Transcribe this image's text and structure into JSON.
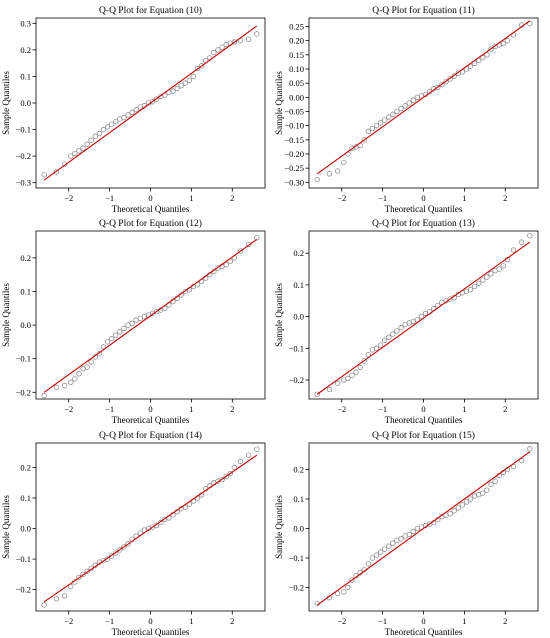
{
  "figure": {
    "background": "#ffffff",
    "marker_color": "#7f7f7f",
    "line_color": "#cc0000"
  },
  "chart_data": [
    {
      "type": "scatter",
      "title": "Q-Q Plot for Equation (10)",
      "xlabel": "Theoretical Quantiles",
      "ylabel": "Sample Quantiles",
      "xlim": [
        -2.8,
        2.8
      ],
      "ylim": [
        -0.32,
        0.32
      ],
      "xticks": [
        -2,
        -1,
        0,
        1,
        2
      ],
      "yticks": [
        -0.3,
        -0.2,
        -0.1,
        0.0,
        0.1,
        0.2,
        0.3
      ],
      "yticklabels": [
        "−0.3",
        "−0.2",
        "−0.1",
        "0.0",
        "0.1",
        "0.2",
        "0.3"
      ],
      "reference_line": {
        "x": [
          -2.6,
          2.6
        ],
        "y": [
          -0.29,
          0.29
        ]
      },
      "series": [
        {
          "x": [
            -2.6,
            -2.3,
            -2.1,
            -1.95,
            -1.85,
            -1.75,
            -1.65,
            -1.55,
            -1.45,
            -1.35,
            -1.25,
            -1.15,
            -1.05,
            -0.95,
            -0.85,
            -0.75,
            -0.65,
            -0.55,
            -0.45,
            -0.35,
            -0.25,
            -0.15,
            -0.05,
            0.05,
            0.15,
            0.25,
            0.35,
            0.45,
            0.55,
            0.65,
            0.75,
            0.85,
            0.95,
            1.05,
            1.15,
            1.25,
            1.35,
            1.45,
            1.55,
            1.65,
            1.75,
            1.85,
            1.95,
            2.05,
            2.2,
            2.4,
            2.6
          ],
          "y": [
            -0.27,
            -0.26,
            -0.23,
            -0.2,
            -0.19,
            -0.18,
            -0.17,
            -0.155,
            -0.14,
            -0.125,
            -0.115,
            -0.1,
            -0.09,
            -0.08,
            -0.07,
            -0.06,
            -0.055,
            -0.045,
            -0.035,
            -0.025,
            -0.015,
            -0.01,
            0.0,
            0.005,
            0.015,
            0.025,
            0.03,
            0.04,
            0.045,
            0.055,
            0.065,
            0.075,
            0.085,
            0.1,
            0.13,
            0.14,
            0.16,
            0.17,
            0.19,
            0.2,
            0.21,
            0.22,
            0.225,
            0.23,
            0.235,
            0.24,
            0.26
          ]
        }
      ]
    },
    {
      "type": "scatter",
      "title": "Q-Q Plot for Equation (11)",
      "xlabel": "Theoretical Quantiles",
      "ylabel": "Sample Quantiles",
      "xlim": [
        -2.8,
        2.8
      ],
      "ylim": [
        -0.32,
        0.28
      ],
      "xticks": [
        -2,
        -1,
        0,
        1,
        2
      ],
      "yticks": [
        -0.3,
        -0.25,
        -0.2,
        -0.15,
        -0.1,
        -0.05,
        0.0,
        0.05,
        0.1,
        0.15,
        0.2,
        0.25
      ],
      "yticklabels": [
        "−0.30",
        "−0.25",
        "−0.20",
        "−0.15",
        "−0.10",
        "−0.05",
        "0.00",
        "0.05",
        "0.10",
        "0.15",
        "0.20",
        "0.25"
      ],
      "reference_line": {
        "x": [
          -2.6,
          2.6
        ],
        "y": [
          -0.27,
          0.27
        ]
      },
      "series": [
        {
          "x": [
            -2.6,
            -2.3,
            -2.1,
            -1.95,
            -1.85,
            -1.75,
            -1.65,
            -1.55,
            -1.45,
            -1.35,
            -1.25,
            -1.15,
            -1.05,
            -0.95,
            -0.85,
            -0.75,
            -0.65,
            -0.55,
            -0.45,
            -0.35,
            -0.25,
            -0.15,
            -0.05,
            0.05,
            0.15,
            0.25,
            0.35,
            0.45,
            0.55,
            0.65,
            0.75,
            0.85,
            0.95,
            1.05,
            1.15,
            1.25,
            1.35,
            1.45,
            1.55,
            1.65,
            1.75,
            1.85,
            1.95,
            2.05,
            2.2,
            2.4,
            2.6
          ],
          "y": [
            -0.29,
            -0.27,
            -0.26,
            -0.23,
            -0.2,
            -0.18,
            -0.175,
            -0.17,
            -0.15,
            -0.12,
            -0.11,
            -0.1,
            -0.09,
            -0.08,
            -0.07,
            -0.06,
            -0.05,
            -0.04,
            -0.03,
            -0.02,
            -0.01,
            0.0,
            0.005,
            0.01,
            0.02,
            0.03,
            0.035,
            0.045,
            0.055,
            0.065,
            0.075,
            0.085,
            0.09,
            0.1,
            0.11,
            0.12,
            0.13,
            0.14,
            0.15,
            0.17,
            0.18,
            0.185,
            0.19,
            0.2,
            0.22,
            0.255,
            0.26
          ]
        }
      ]
    },
    {
      "type": "scatter",
      "title": "Q-Q Plot for Equation (12)",
      "xlabel": "Theoretical Quantiles",
      "ylabel": "Sample Quantiles",
      "xlim": [
        -2.8,
        2.8
      ],
      "ylim": [
        -0.22,
        0.28
      ],
      "xticks": [
        -2,
        -1,
        0,
        1,
        2
      ],
      "yticks": [
        -0.2,
        -0.1,
        0.0,
        0.1,
        0.2
      ],
      "yticklabels": [
        "−0.2",
        "−0.1",
        "0.0",
        "0.1",
        "0.2"
      ],
      "reference_line": {
        "x": [
          -2.6,
          2.6
        ],
        "y": [
          -0.2,
          0.255
        ]
      },
      "series": [
        {
          "x": [
            -2.6,
            -2.3,
            -2.1,
            -1.95,
            -1.85,
            -1.75,
            -1.65,
            -1.55,
            -1.45,
            -1.35,
            -1.25,
            -1.15,
            -1.05,
            -0.95,
            -0.85,
            -0.75,
            -0.65,
            -0.55,
            -0.45,
            -0.35,
            -0.25,
            -0.15,
            -0.05,
            0.05,
            0.15,
            0.25,
            0.35,
            0.45,
            0.55,
            0.65,
            0.75,
            0.85,
            0.95,
            1.05,
            1.15,
            1.25,
            1.35,
            1.45,
            1.55,
            1.65,
            1.75,
            1.85,
            1.95,
            2.05,
            2.2,
            2.4,
            2.6
          ],
          "y": [
            -0.21,
            -0.185,
            -0.18,
            -0.17,
            -0.16,
            -0.145,
            -0.13,
            -0.125,
            -0.11,
            -0.095,
            -0.085,
            -0.065,
            -0.05,
            -0.04,
            -0.03,
            -0.02,
            -0.01,
            0.0,
            0.005,
            0.015,
            0.02,
            0.025,
            0.03,
            0.035,
            0.04,
            0.045,
            0.05,
            0.06,
            0.07,
            0.08,
            0.09,
            0.1,
            0.105,
            0.115,
            0.12,
            0.13,
            0.14,
            0.15,
            0.16,
            0.17,
            0.175,
            0.18,
            0.19,
            0.2,
            0.22,
            0.24,
            0.26
          ]
        }
      ]
    },
    {
      "type": "scatter",
      "title": "Q-Q Plot for Equation (13)",
      "xlabel": "Theoretical Quantiles",
      "ylabel": "Sample Quantiles",
      "xlim": [
        -2.8,
        2.8
      ],
      "ylim": [
        -0.26,
        0.27
      ],
      "xticks": [
        -2,
        -1,
        0,
        1,
        2
      ],
      "yticks": [
        -0.2,
        -0.1,
        0.0,
        0.1,
        0.2
      ],
      "yticklabels": [
        "−0.2",
        "−0.1",
        "0.0",
        "0.1",
        "0.2"
      ],
      "reference_line": {
        "x": [
          -2.6,
          2.6
        ],
        "y": [
          -0.245,
          0.235
        ]
      },
      "series": [
        {
          "x": [
            -2.6,
            -2.3,
            -2.1,
            -1.95,
            -1.85,
            -1.75,
            -1.65,
            -1.55,
            -1.45,
            -1.35,
            -1.25,
            -1.15,
            -1.05,
            -0.95,
            -0.85,
            -0.75,
            -0.65,
            -0.55,
            -0.45,
            -0.35,
            -0.25,
            -0.15,
            -0.05,
            0.05,
            0.15,
            0.25,
            0.35,
            0.45,
            0.55,
            0.65,
            0.75,
            0.85,
            0.95,
            1.05,
            1.15,
            1.25,
            1.35,
            1.45,
            1.55,
            1.65,
            1.75,
            1.85,
            1.95,
            2.05,
            2.2,
            2.4,
            2.6
          ],
          "y": [
            -0.245,
            -0.23,
            -0.21,
            -0.2,
            -0.195,
            -0.185,
            -0.175,
            -0.16,
            -0.14,
            -0.12,
            -0.105,
            -0.1,
            -0.09,
            -0.075,
            -0.065,
            -0.055,
            -0.045,
            -0.035,
            -0.025,
            -0.02,
            -0.015,
            -0.01,
            0.0,
            0.01,
            0.015,
            0.025,
            0.035,
            0.045,
            0.05,
            0.055,
            0.06,
            0.07,
            0.075,
            0.08,
            0.085,
            0.095,
            0.105,
            0.115,
            0.125,
            0.135,
            0.145,
            0.15,
            0.16,
            0.18,
            0.21,
            0.235,
            0.255
          ]
        }
      ]
    },
    {
      "type": "scatter",
      "title": "Q-Q Plot for Equation (14)",
      "xlabel": "Theoretical Quantiles",
      "ylabel": "Sample Quantiles",
      "xlim": [
        -2.8,
        2.8
      ],
      "ylim": [
        -0.27,
        0.28
      ],
      "xticks": [
        -2,
        -1,
        0,
        1,
        2
      ],
      "yticks": [
        -0.2,
        -0.1,
        0.0,
        0.1,
        0.2
      ],
      "yticklabels": [
        "−0.2",
        "−0.1",
        "0.0",
        "0.1",
        "0.2"
      ],
      "reference_line": {
        "x": [
          -2.6,
          2.6
        ],
        "y": [
          -0.24,
          0.24
        ]
      },
      "series": [
        {
          "x": [
            -2.6,
            -2.3,
            -2.1,
            -1.95,
            -1.85,
            -1.75,
            -1.65,
            -1.55,
            -1.45,
            -1.35,
            -1.25,
            -1.15,
            -1.05,
            -0.95,
            -0.85,
            -0.75,
            -0.65,
            -0.55,
            -0.45,
            -0.35,
            -0.25,
            -0.15,
            -0.05,
            0.05,
            0.15,
            0.25,
            0.35,
            0.45,
            0.55,
            0.65,
            0.75,
            0.85,
            0.95,
            1.05,
            1.15,
            1.25,
            1.35,
            1.45,
            1.55,
            1.65,
            1.75,
            1.85,
            1.95,
            2.05,
            2.2,
            2.4,
            2.6
          ],
          "y": [
            -0.25,
            -0.23,
            -0.22,
            -0.19,
            -0.175,
            -0.16,
            -0.15,
            -0.14,
            -0.13,
            -0.12,
            -0.11,
            -0.105,
            -0.1,
            -0.09,
            -0.08,
            -0.07,
            -0.06,
            -0.05,
            -0.035,
            -0.025,
            -0.015,
            -0.005,
            0.0,
            0.005,
            0.01,
            0.02,
            0.03,
            0.035,
            0.045,
            0.055,
            0.065,
            0.07,
            0.08,
            0.09,
            0.1,
            0.11,
            0.13,
            0.14,
            0.15,
            0.155,
            0.16,
            0.17,
            0.18,
            0.2,
            0.22,
            0.24,
            0.26
          ]
        }
      ]
    },
    {
      "type": "scatter",
      "title": "Q-Q Plot for Equation (15)",
      "xlabel": "Theoretical Quantiles",
      "ylabel": "Sample Quantiles",
      "xlim": [
        -2.8,
        2.8
      ],
      "ylim": [
        -0.28,
        0.29
      ],
      "xticks": [
        -2,
        -1,
        0,
        1,
        2
      ],
      "yticks": [
        -0.2,
        -0.1,
        0.0,
        0.1,
        0.2
      ],
      "yticklabels": [
        "−0.2",
        "−0.1",
        "0.0",
        "0.1",
        "0.2"
      ],
      "reference_line": {
        "x": [
          -2.6,
          2.6
        ],
        "y": [
          -0.26,
          0.26
        ]
      },
      "series": [
        {
          "x": [
            -2.6,
            -2.3,
            -2.1,
            -1.95,
            -1.85,
            -1.75,
            -1.65,
            -1.55,
            -1.45,
            -1.35,
            -1.25,
            -1.15,
            -1.05,
            -0.95,
            -0.85,
            -0.75,
            -0.65,
            -0.55,
            -0.45,
            -0.35,
            -0.25,
            -0.15,
            -0.05,
            0.05,
            0.15,
            0.25,
            0.35,
            0.45,
            0.55,
            0.65,
            0.75,
            0.85,
            0.95,
            1.05,
            1.15,
            1.25,
            1.35,
            1.45,
            1.55,
            1.65,
            1.75,
            1.85,
            1.95,
            2.05,
            2.2,
            2.4,
            2.6
          ],
          "y": [
            -0.255,
            -0.235,
            -0.22,
            -0.215,
            -0.2,
            -0.175,
            -0.16,
            -0.15,
            -0.14,
            -0.12,
            -0.1,
            -0.09,
            -0.08,
            -0.07,
            -0.06,
            -0.05,
            -0.04,
            -0.035,
            -0.025,
            -0.02,
            -0.01,
            0.0,
            0.005,
            0.01,
            0.015,
            0.02,
            0.03,
            0.04,
            0.045,
            0.05,
            0.06,
            0.07,
            0.08,
            0.09,
            0.1,
            0.11,
            0.115,
            0.12,
            0.13,
            0.15,
            0.16,
            0.18,
            0.19,
            0.2,
            0.21,
            0.23,
            0.27
          ]
        }
      ]
    }
  ]
}
